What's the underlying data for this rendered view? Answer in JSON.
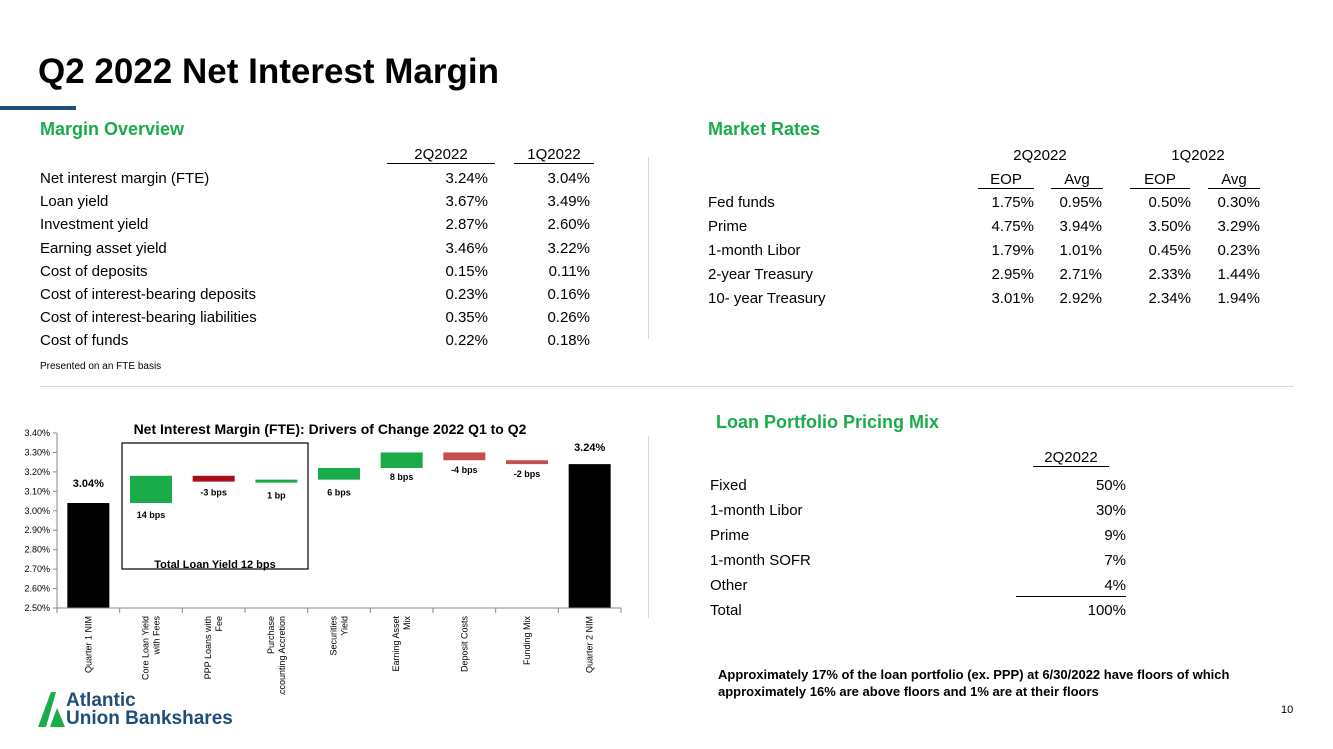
{
  "title": "Q2 2022 Net Interest Margin",
  "colors": {
    "green": "#1aab4a",
    "navy": "#1f4e79",
    "bar_black": "#000000",
    "bar_red": "#a50f15",
    "bar_salmon": "#c0504d"
  },
  "margin_overview": {
    "heading": "Margin Overview",
    "col_headers": [
      "2Q2022",
      "1Q2022"
    ],
    "rows": [
      {
        "label": "Net interest margin  (FTE)",
        "q2": "3.24%",
        "q1": "3.04%"
      },
      {
        "label": "Loan yield",
        "q2": "3.67%",
        "q1": "3.49%"
      },
      {
        "label": "Investment yield",
        "q2": "2.87%",
        "q1": "2.60%"
      },
      {
        "label": "Earning asset yield",
        "q2": "3.46%",
        "q1": "3.22%"
      },
      {
        "label": "Cost of deposits",
        "q2": "0.15%",
        "q1": "0.11%"
      },
      {
        "label": "Cost of interest-bearing deposits",
        "q2": "0.23%",
        "q1": "0.16%"
      },
      {
        "label": "Cost of interest-bearing liabilities",
        "q2": "0.35%",
        "q1": "0.26%"
      },
      {
        "label": "Cost of funds",
        "q2": "0.22%",
        "q1": "0.18%"
      }
    ],
    "note": "Presented on an FTE basis"
  },
  "market_rates": {
    "heading": "Market Rates",
    "period_headers": [
      "2Q2022",
      "1Q2022"
    ],
    "sub_headers": [
      "EOP",
      "Avg",
      "EOP",
      "Avg"
    ],
    "rows": [
      {
        "label": "Fed funds",
        "v": [
          "1.75%",
          "0.95%",
          "0.50%",
          "0.30%"
        ]
      },
      {
        "label": "Prime",
        "v": [
          "4.75%",
          "3.94%",
          "3.50%",
          "3.29%"
        ]
      },
      {
        "label": "1-month Libor",
        "v": [
          "1.79%",
          "1.01%",
          "0.45%",
          "0.23%"
        ]
      },
      {
        "label": "2-year Treasury",
        "v": [
          "2.95%",
          "2.71%",
          "2.33%",
          "1.44%"
        ]
      },
      {
        "label": "10- year Treasury",
        "v": [
          "3.01%",
          "2.92%",
          "2.34%",
          "1.94%"
        ]
      }
    ]
  },
  "loan_mix": {
    "heading": "Loan Portfolio Pricing Mix",
    "col_header": "2Q2022",
    "rows": [
      {
        "label": "Fixed",
        "value": "50%"
      },
      {
        "label": "1-month Libor",
        "value": "30%"
      },
      {
        "label": "Prime",
        "value": "9%"
      },
      {
        "label": "1-month SOFR",
        "value": "7%"
      },
      {
        "label": "Other",
        "value": "4%"
      },
      {
        "label": "Total",
        "value": "100%"
      }
    ]
  },
  "floors_note": "Approximately 17% of the loan portfolio (ex. PPP) at 6/30/2022 have floors of which approximately 16% are above floors and 1% are at their floors",
  "page_number": "10",
  "logo": {
    "line1": "Atlantic",
    "line2": "Union Bankshares"
  },
  "chart_data": {
    "type": "bar",
    "subtype": "waterfall",
    "title": "Net Interest Margin (FTE): Drivers of Change 2022 Q1 to Q2",
    "ylim": [
      2.5,
      3.4
    ],
    "yticks": [
      "2.50%",
      "2.60%",
      "2.70%",
      "2.80%",
      "2.90%",
      "3.00%",
      "3.10%",
      "3.20%",
      "3.30%",
      "3.40%"
    ],
    "box_label": "Total Loan Yield 12 bps",
    "categories": [
      "Quarter 1 NIM",
      "Core Loan Yield with Fees",
      "PPP Loans with Fee",
      "Purchase Accounting Accretion",
      "Securities Yield",
      "Earning Asset Mix",
      "Deposit Costs",
      "Funding Mix",
      "Quarter 2 NIM"
    ],
    "bars": [
      {
        "category": "Quarter 1 NIM",
        "base": 2.5,
        "top": 3.04,
        "label": "3.04%",
        "color": "#000000",
        "kind": "total"
      },
      {
        "category": "Core Loan Yield with Fees",
        "base": 3.04,
        "top": 3.18,
        "label": "14 bps",
        "color": "#1aab4a",
        "kind": "up"
      },
      {
        "category": "PPP Loans with Fee",
        "base": 3.15,
        "top": 3.18,
        "label": "-3 bps",
        "color": "#a50f15",
        "kind": "down"
      },
      {
        "category": "Purchase Accounting Accretion",
        "base": 3.15,
        "top": 3.16,
        "label": "1 bp",
        "color": "#1aab4a",
        "kind": "up"
      },
      {
        "category": "Securities Yield",
        "base": 3.16,
        "top": 3.22,
        "label": "6 bps",
        "color": "#1aab4a",
        "kind": "up"
      },
      {
        "category": "Earning Asset Mix",
        "base": 3.22,
        "top": 3.3,
        "label": "8 bps",
        "color": "#1aab4a",
        "kind": "up"
      },
      {
        "category": "Deposit Costs",
        "base": 3.26,
        "top": 3.3,
        "label": "-4 bps",
        "color": "#c0504d",
        "kind": "down"
      },
      {
        "category": "Funding Mix",
        "base": 3.24,
        "top": 3.26,
        "label": "-2 bps",
        "color": "#c0504d",
        "kind": "down"
      },
      {
        "category": "Quarter 2 NIM",
        "base": 2.5,
        "top": 3.24,
        "label": "3.24%",
        "color": "#000000",
        "kind": "total"
      }
    ]
  }
}
